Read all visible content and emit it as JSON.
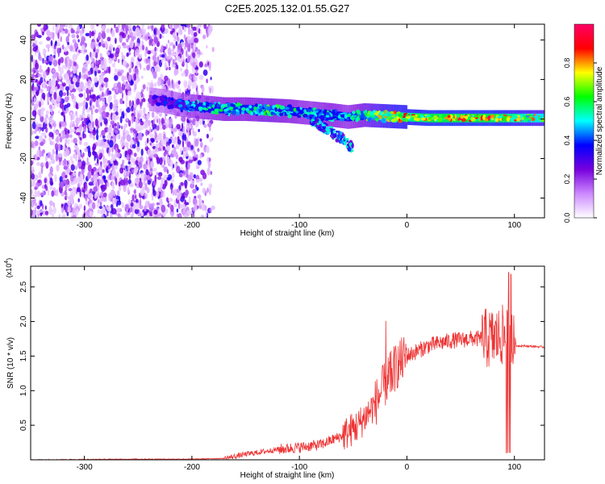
{
  "page_title": "C2E5.2025.132.01.55.G27",
  "chart_data": [
    {
      "type": "heatmap",
      "xlabel": "Height of straight line (km)",
      "ylabel": "Frequency (Hz)",
      "xlim": [
        -350,
        128
      ],
      "ylim": [
        -50,
        48
      ],
      "x_ticks": [
        -300,
        -200,
        -100,
        0,
        100
      ],
      "y_ticks": [
        -40,
        -20,
        0,
        20,
        40
      ],
      "colorbar": {
        "label": "Normalized spectral amplitude",
        "range": [
          0,
          1
        ],
        "ticks": [
          "0.0",
          "0.2",
          "0.4",
          "0.6",
          "0.8"
        ],
        "colors": [
          "#ffffff",
          "#cc88ff",
          "#7700dd",
          "#0000ff",
          "#00ffff",
          "#00ff00",
          "#ffff00",
          "#ff0000",
          "#ff0066"
        ]
      },
      "noise_region_km": [
        -350,
        -180
      ],
      "ridge": {
        "x": [
          -240,
          -225,
          -210,
          -190,
          -170,
          -150,
          -130,
          -110,
          -90,
          -70,
          -55,
          -40,
          -20,
          0,
          20,
          40,
          60,
          80,
          95,
          110,
          128
        ],
        "freq": [
          10,
          9,
          7,
          6,
          5,
          5,
          4.5,
          4,
          3,
          2,
          1,
          2,
          1.5,
          1,
          0.5,
          0.5,
          0.5,
          0.5,
          0.5,
          0.5,
          0.5
        ],
        "amplitude": [
          0.3,
          0.35,
          0.4,
          0.5,
          0.55,
          0.55,
          0.6,
          0.55,
          0.5,
          0.55,
          0.5,
          0.6,
          0.75,
          0.8,
          0.85,
          0.85,
          0.85,
          0.85,
          0.8,
          0.75,
          0.7
        ]
      },
      "tail": {
        "x": [
          -90,
          -75,
          -60,
          -50
        ],
        "freq": [
          0,
          -5,
          -10,
          -15
        ]
      }
    },
    {
      "type": "line",
      "xlabel": "Height of straight line (km)",
      "ylabel": "SNR (10 * v/v)",
      "y_multiplier": "(x10^4)",
      "xlim": [
        -350,
        128
      ],
      "ylim": [
        0,
        2.8
      ],
      "x_ticks": [
        -300,
        -200,
        -100,
        0,
        100
      ],
      "y_ticks": [
        0.5,
        1.0,
        1.5,
        2.0,
        2.5
      ],
      "color": "#ee3333",
      "series": [
        {
          "x": [
            -350,
            -250,
            -200,
            -170,
            -150,
            -120,
            -100,
            -80,
            -60,
            -45,
            -30,
            -20,
            -10,
            0,
            20,
            40,
            60,
            80,
            90,
            95,
            100,
            105,
            128
          ],
          "y": [
            0.0,
            0.01,
            0.01,
            0.02,
            0.08,
            0.15,
            0.18,
            0.22,
            0.35,
            0.5,
            0.8,
            1.1,
            1.35,
            1.5,
            1.65,
            1.72,
            1.75,
            1.75,
            1.8,
            1.7,
            1.65,
            1.65,
            1.63
          ]
        }
      ]
    }
  ]
}
